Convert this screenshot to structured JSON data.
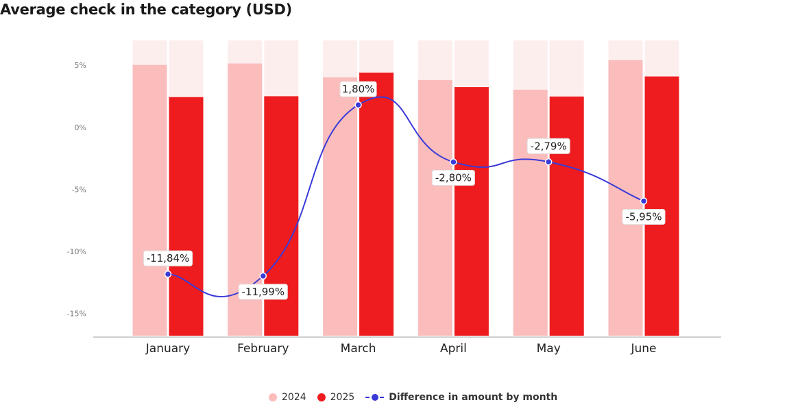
{
  "title": "Average check in the category (USD)",
  "colors": {
    "bar_2024": "#fbbcbc",
    "bar_2025": "#ee1c1e",
    "bar_background": "#fdeeee",
    "line": "#3a3ad8",
    "axis_text": "#777777",
    "baseline": "#d0d0d0"
  },
  "legend": {
    "s2024": "2024",
    "s2025": "2025",
    "diff": "Difference in amount by month"
  },
  "chart_data": {
    "type": "bar",
    "title": "Average check in the category (USD)",
    "categories": [
      "January",
      "February",
      "March",
      "April",
      "May",
      "June"
    ],
    "series": [
      {
        "name": "2024",
        "type": "bar",
        "axis": "unlabeled",
        "values": [
          91.7,
          92.2,
          87.5,
          86.6,
          83.3,
          93.3
        ]
      },
      {
        "name": "2025",
        "type": "bar",
        "axis": "unlabeled",
        "values": [
          80.8,
          81.1,
          89.1,
          84.2,
          81.0,
          87.8
        ]
      },
      {
        "name": "Difference in amount by month",
        "type": "line",
        "axis": "percent",
        "values": [
          -11.84,
          -11.99,
          1.8,
          -2.8,
          -2.79,
          -5.95
        ]
      }
    ],
    "data_labels": [
      "-11,84%",
      "-11,99%",
      "1,80%",
      "-2,80%",
      "-2,79%",
      "-5,95%"
    ],
    "y_percent_axis": {
      "ticks": [
        5,
        0,
        -5,
        -10,
        -15
      ],
      "tick_labels": [
        "5%",
        "0%",
        "-5%",
        "-10%",
        "-15%"
      ],
      "range": [
        -16.8,
        7
      ]
    },
    "bar_axis_range": [
      0,
      100
    ],
    "grid": false,
    "legend_position": "bottom"
  }
}
